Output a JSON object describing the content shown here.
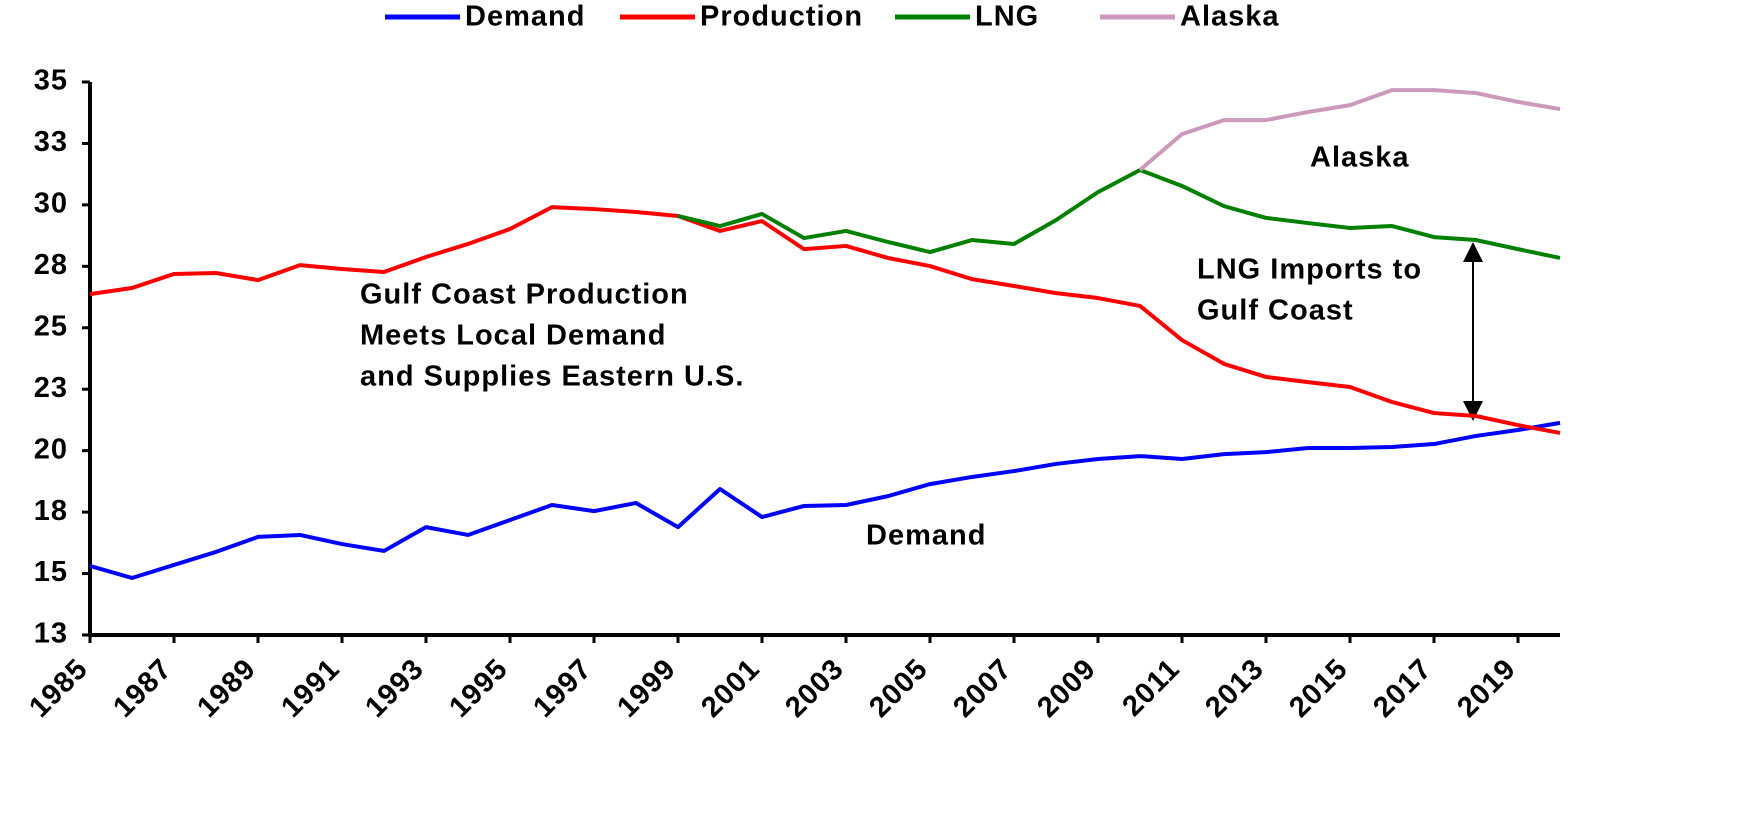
{
  "chart_data": {
    "type": "line",
    "x": [
      1985,
      1986,
      1987,
      1988,
      1989,
      1990,
      1991,
      1992,
      1993,
      1994,
      1995,
      1996,
      1997,
      1998,
      1999,
      2000,
      2001,
      2002,
      2003,
      2004,
      2005,
      2006,
      2007,
      2008,
      2009,
      2010,
      2011,
      2012,
      2013,
      2014,
      2015,
      2016,
      2017,
      2018,
      2019,
      2020
    ],
    "series": [
      {
        "name": "Demand",
        "color": "#0000ff",
        "values": [
          15.31,
          14.82,
          15.35,
          15.88,
          16.49,
          16.57,
          16.2,
          15.92,
          16.89,
          16.57,
          17.18,
          17.79,
          17.54,
          17.87,
          16.89,
          18.44,
          17.3,
          17.75,
          17.79,
          18.15,
          18.64,
          18.93,
          19.17,
          19.46,
          19.66,
          19.78,
          19.66,
          19.86,
          19.94,
          20.11,
          20.11,
          20.15,
          20.27,
          20.6,
          20.84,
          21.13
        ]
      },
      {
        "name": "Production",
        "color": "#ff0000",
        "values": [
          26.37,
          26.62,
          27.19,
          27.23,
          26.94,
          27.55,
          27.39,
          27.27,
          27.88,
          28.41,
          29.02,
          29.91,
          29.83,
          29.71,
          29.55,
          28.94,
          29.34,
          28.2,
          28.33,
          27.84,
          27.51,
          26.98,
          26.7,
          26.41,
          26.21,
          25.89,
          24.5,
          23.53,
          23.0,
          22.79,
          22.59,
          21.98,
          21.53,
          21.41,
          21.04,
          20.72
        ]
      },
      {
        "name": "LNG",
        "color": "#008000",
        "values": [
          null,
          null,
          null,
          null,
          null,
          null,
          null,
          null,
          null,
          null,
          null,
          null,
          null,
          null,
          29.55,
          29.14,
          29.63,
          28.65,
          28.94,
          28.49,
          28.08,
          28.57,
          28.41,
          29.38,
          30.52,
          31.42,
          30.77,
          29.95,
          29.47,
          29.26,
          29.06,
          29.14,
          28.69,
          28.57,
          28.2,
          27.84
        ]
      },
      {
        "name": "Alaska",
        "color": "#cc99bb",
        "values": [
          null,
          null,
          null,
          null,
          null,
          null,
          null,
          null,
          null,
          null,
          null,
          null,
          null,
          null,
          null,
          null,
          null,
          null,
          null,
          null,
          null,
          null,
          null,
          null,
          null,
          31.42,
          32.88,
          33.45,
          33.45,
          33.78,
          34.06,
          34.67,
          34.67,
          34.55,
          34.19,
          33.9
        ]
      }
    ],
    "xlim": [
      1985,
      2020
    ],
    "xticks": [
      1985,
      1987,
      1989,
      1991,
      1993,
      1995,
      1997,
      1999,
      2001,
      2003,
      2005,
      2007,
      2009,
      2011,
      2013,
      2015,
      2017,
      2019
    ],
    "ylim": [
      12.5,
      35
    ],
    "yticks": [
      {
        "value": 12.5,
        "label": "13"
      },
      15,
      {
        "value": 17.5,
        "label": "18"
      },
      20,
      {
        "value": 22.5,
        "label": "23"
      },
      25,
      {
        "value": 27.5,
        "label": "28"
      },
      30,
      {
        "value": 32.5,
        "label": "33"
      },
      35
    ],
    "annotations": [
      "Gulf Coast Production",
      "Meets Local Demand",
      "and Supplies Eastern U.S.",
      "Demand",
      "Alaska",
      "LNG Imports to",
      "Gulf Coast"
    ],
    "legend": "top"
  }
}
